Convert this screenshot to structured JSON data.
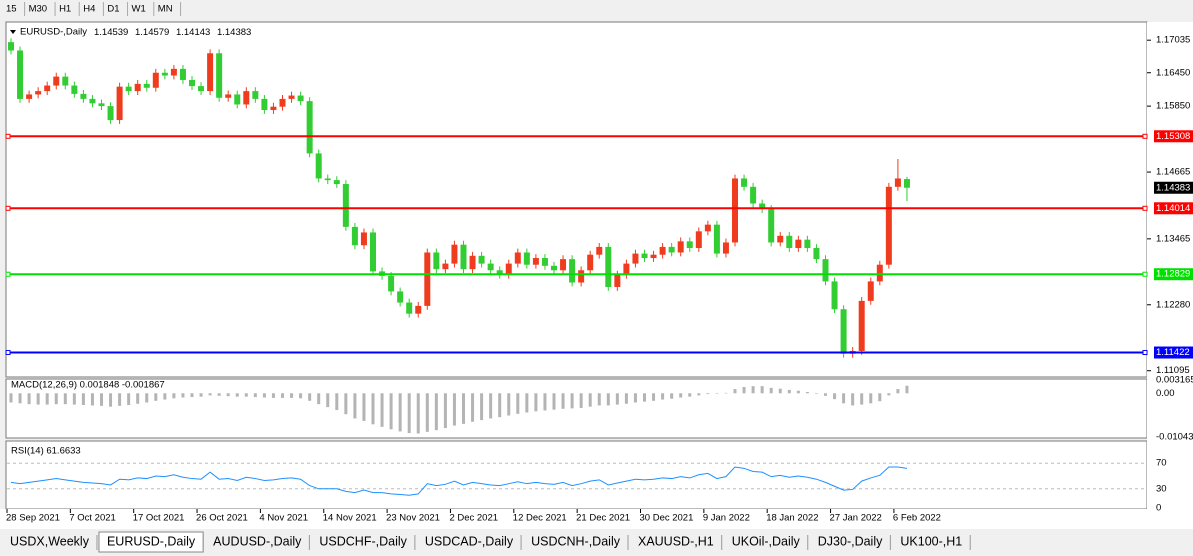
{
  "toolbar": {
    "timeframes": [
      "15",
      "M30",
      "H1",
      "H4",
      "D1",
      "W1",
      "MN"
    ]
  },
  "chart_data": [
    {
      "type": "candlestick",
      "title": "EURUSD-,Daily",
      "up_color": "#f03c1e",
      "down_color": "#32cd32",
      "categories": [
        "28 Sep 2021",
        null,
        null,
        null,
        null,
        null,
        null,
        "7 Oct 2021",
        null,
        null,
        null,
        null,
        null,
        null,
        "17 Oct 2021",
        null,
        null,
        null,
        null,
        null,
        null,
        "26 Oct 2021",
        null,
        null,
        null,
        null,
        null,
        null,
        "4 Nov 2021",
        null,
        null,
        null,
        null,
        null,
        null,
        "14 Nov 2021",
        null,
        null,
        null,
        null,
        null,
        null,
        "23 Nov 2021",
        null,
        null,
        null,
        null,
        null,
        null,
        "2 Dec 2021",
        null,
        null,
        null,
        null,
        null,
        null,
        "12 Dec 2021",
        null,
        null,
        null,
        null,
        null,
        null,
        "21 Dec 2021",
        null,
        null,
        null,
        null,
        null,
        null,
        "30 Dec 2021",
        null,
        null,
        null,
        null,
        null,
        null,
        "9 Jan 2022",
        null,
        null,
        null,
        null,
        null,
        null,
        "18 Jan 2022",
        null,
        null,
        null,
        null,
        null,
        null,
        "27 Jan 2022",
        null,
        null,
        null,
        null,
        null,
        null,
        "6 Feb 2022",
        null
      ],
      "candles": [
        [
          1.17,
          1.1707,
          1.1678,
          1.1685
        ],
        [
          1.1685,
          1.1692,
          1.1591,
          1.1598
        ],
        [
          1.1598,
          1.1613,
          1.1591,
          1.1606
        ],
        [
          1.1606,
          1.1619,
          1.1599,
          1.1612
        ],
        [
          1.1612,
          1.1629,
          1.1605,
          1.1622
        ],
        [
          1.1622,
          1.1645,
          1.1615,
          1.1638
        ],
        [
          1.1638,
          1.1645,
          1.1615,
          1.1622
        ],
        [
          1.1622,
          1.1629,
          1.16,
          1.1607
        ],
        [
          1.1607,
          1.1614,
          1.1591,
          1.1598
        ],
        [
          1.1598,
          1.1605,
          1.1583,
          1.159
        ],
        [
          1.159,
          1.1597,
          1.1578,
          1.1585
        ],
        [
          1.1585,
          1.1592,
          1.1553,
          1.156
        ],
        [
          1.156,
          1.1627,
          1.1553,
          1.162
        ],
        [
          1.162,
          1.1627,
          1.1605,
          1.1612
        ],
        [
          1.1612,
          1.1632,
          1.1605,
          1.1625
        ],
        [
          1.1625,
          1.1632,
          1.1611,
          1.1618
        ],
        [
          1.1618,
          1.1652,
          1.1611,
          1.1645
        ],
        [
          1.1645,
          1.1652,
          1.1633,
          1.164
        ],
        [
          1.164,
          1.1659,
          1.1633,
          1.1652
        ],
        [
          1.1652,
          1.1659,
          1.1625,
          1.1632
        ],
        [
          1.1632,
          1.1639,
          1.1614,
          1.1621
        ],
        [
          1.1621,
          1.1628,
          1.1605,
          1.1612
        ],
        [
          1.1612,
          1.1687,
          1.1605,
          1.168
        ],
        [
          1.168,
          1.1687,
          1.1593,
          1.16
        ],
        [
          1.16,
          1.1613,
          1.1593,
          1.1606
        ],
        [
          1.1606,
          1.1613,
          1.1581,
          1.1588
        ],
        [
          1.1588,
          1.1619,
          1.1581,
          1.1612
        ],
        [
          1.1612,
          1.1619,
          1.1591,
          1.1598
        ],
        [
          1.1598,
          1.1605,
          1.1571,
          1.1578
        ],
        [
          1.1578,
          1.1591,
          1.1571,
          1.1584
        ],
        [
          1.1584,
          1.1605,
          1.1577,
          1.1598
        ],
        [
          1.1598,
          1.1611,
          1.1591,
          1.1604
        ],
        [
          1.1604,
          1.1611,
          1.1587,
          1.1594
        ],
        [
          1.1594,
          1.1601,
          1.1493,
          1.15
        ],
        [
          1.15,
          1.1507,
          1.1448,
          1.1455
        ],
        [
          1.1455,
          1.1462,
          1.1445,
          1.1452
        ],
        [
          1.1452,
          1.1459,
          1.1438,
          1.1445
        ],
        [
          1.1445,
          1.1452,
          1.1361,
          1.1368
        ],
        [
          1.1368,
          1.1375,
          1.1328,
          1.1335
        ],
        [
          1.1335,
          1.1365,
          1.1328,
          1.1358
        ],
        [
          1.1358,
          1.1365,
          1.1281,
          1.1288
        ],
        [
          1.1288,
          1.1295,
          1.1273,
          1.128
        ],
        [
          1.128,
          1.1287,
          1.1245,
          1.1252
        ],
        [
          1.1252,
          1.1259,
          1.1225,
          1.1232
        ],
        [
          1.1232,
          1.1239,
          1.1205,
          1.1212
        ],
        [
          1.1212,
          1.1233,
          1.1205,
          1.1226
        ],
        [
          1.1226,
          1.1329,
          1.1219,
          1.1322
        ],
        [
          1.1322,
          1.1329,
          1.1285,
          1.1292
        ],
        [
          1.1292,
          1.1309,
          1.1285,
          1.1302
        ],
        [
          1.1302,
          1.1343,
          1.1295,
          1.1336
        ],
        [
          1.1336,
          1.1343,
          1.1285,
          1.1292
        ],
        [
          1.1292,
          1.1323,
          1.1285,
          1.1316
        ],
        [
          1.1316,
          1.1323,
          1.1295,
          1.1302
        ],
        [
          1.1302,
          1.1309,
          1.1283,
          1.129
        ],
        [
          1.129,
          1.1297,
          1.1275,
          1.1282
        ],
        [
          1.1282,
          1.1309,
          1.1275,
          1.1302
        ],
        [
          1.1302,
          1.1329,
          1.1295,
          1.1322
        ],
        [
          1.1322,
          1.1329,
          1.1293,
          1.13
        ],
        [
          1.13,
          1.1319,
          1.1293,
          1.1312
        ],
        [
          1.1312,
          1.1319,
          1.1291,
          1.1298
        ],
        [
          1.1298,
          1.1305,
          1.1283,
          1.129
        ],
        [
          1.129,
          1.1317,
          1.1283,
          1.131
        ],
        [
          1.131,
          1.1317,
          1.1261,
          1.1268
        ],
        [
          1.1268,
          1.1297,
          1.1261,
          1.129
        ],
        [
          1.129,
          1.1325,
          1.1283,
          1.1318
        ],
        [
          1.1318,
          1.1339,
          1.1311,
          1.1332
        ],
        [
          1.1332,
          1.1339,
          1.1253,
          1.126
        ],
        [
          1.126,
          1.1289,
          1.1253,
          1.1282
        ],
        [
          1.1282,
          1.1309,
          1.1275,
          1.1302
        ],
        [
          1.1302,
          1.1327,
          1.1295,
          1.132
        ],
        [
          1.132,
          1.1327,
          1.1305,
          1.1312
        ],
        [
          1.1312,
          1.1325,
          1.1305,
          1.1318
        ],
        [
          1.1318,
          1.1339,
          1.1311,
          1.1332
        ],
        [
          1.1332,
          1.1339,
          1.1315,
          1.1322
        ],
        [
          1.1322,
          1.1349,
          1.1315,
          1.1342
        ],
        [
          1.1342,
          1.1349,
          1.1323,
          1.133
        ],
        [
          1.133,
          1.1367,
          1.1323,
          1.136
        ],
        [
          1.136,
          1.1379,
          1.1353,
          1.1372
        ],
        [
          1.1372,
          1.1379,
          1.1313,
          1.132
        ],
        [
          1.132,
          1.1347,
          1.1313,
          1.134
        ],
        [
          1.134,
          1.1462,
          1.1333,
          1.1455
        ],
        [
          1.1455,
          1.1462,
          1.1433,
          1.144
        ],
        [
          1.144,
          1.1447,
          1.1403,
          1.141
        ],
        [
          1.141,
          1.1417,
          1.1393,
          1.14
        ],
        [
          1.14,
          1.1407,
          1.1333,
          1.134
        ],
        [
          1.134,
          1.1359,
          1.1333,
          1.1352
        ],
        [
          1.1352,
          1.1359,
          1.1323,
          1.133
        ],
        [
          1.133,
          1.1352,
          1.1323,
          1.1345
        ],
        [
          1.1345,
          1.1352,
          1.1323,
          1.133
        ],
        [
          1.133,
          1.1337,
          1.1303,
          1.131
        ],
        [
          1.131,
          1.1317,
          1.1263,
          1.127
        ],
        [
          1.127,
          1.1277,
          1.1213,
          1.122
        ],
        [
          1.122,
          1.1227,
          1.1133,
          1.114
        ],
        [
          1.114,
          1.1152,
          1.1133,
          1.1145
        ],
        [
          1.1145,
          1.1242,
          1.1138,
          1.1235
        ],
        [
          1.1235,
          1.1277,
          1.1228,
          1.127
        ],
        [
          1.127,
          1.1307,
          1.1263,
          1.13
        ],
        [
          1.13,
          1.1447,
          1.1293,
          1.144
        ],
        [
          1.144,
          1.149,
          1.1433,
          1.1455
        ],
        [
          1.14539,
          1.14579,
          1.14143,
          1.14383
        ]
      ],
      "ylim": [
        1.11,
        1.1729
      ],
      "yticks": [
        1.17035,
        {
          "value": 1.1645,
          "label": "1.16450"
        },
        {
          "value": 1.1585,
          "label": "1.15850"
        },
        1.14665,
        1.13465,
        {
          "value": 1.1228,
          "label": "1.12280"
        },
        1.11095
      ],
      "levels": [
        {
          "value": 1.15308,
          "color": "#ff0000"
        },
        {
          "value": 1.14014,
          "color": "#ff0000"
        },
        {
          "value": 1.12829,
          "color": "#00e000"
        },
        {
          "value": 1.11422,
          "color": "#0000ff"
        }
      ]
    },
    {
      "type": "bar",
      "title": "MACD(12,26,9) 0.001848 -0.001867",
      "color": "#b4b4b4",
      "values": [
        -0.0022,
        -0.0024,
        -0.0026,
        -0.0027,
        -0.0027,
        -0.0026,
        -0.0026,
        -0.0027,
        -0.0028,
        -0.0029,
        -0.003,
        -0.0032,
        -0.003,
        -0.0028,
        -0.0025,
        -0.0022,
        -0.0018,
        -0.0015,
        -0.0012,
        -0.001,
        -0.0009,
        -0.0008,
        -0.0005,
        -0.0006,
        -0.0007,
        -0.0008,
        -0.0008,
        -0.0009,
        -0.001,
        -0.0011,
        -0.0011,
        -0.0011,
        -0.0012,
        -0.0018,
        -0.0026,
        -0.0033,
        -0.004,
        -0.005,
        -0.006,
        -0.0066,
        -0.0074,
        -0.008,
        -0.0086,
        -0.0091,
        -0.0095,
        -0.0096,
        -0.0092,
        -0.0088,
        -0.0083,
        -0.0077,
        -0.0073,
        -0.0068,
        -0.0064,
        -0.006,
        -0.0057,
        -0.0053,
        -0.0049,
        -0.0046,
        -0.0043,
        -0.0041,
        -0.0039,
        -0.0037,
        -0.0036,
        -0.0035,
        -0.0032,
        -0.0029,
        -0.0029,
        -0.0027,
        -0.0025,
        -0.0022,
        -0.002,
        -0.0018,
        -0.0015,
        -0.0013,
        -0.001,
        -0.0008,
        -0.0005,
        -0.0002,
        -0.0001,
        0.0001,
        0.001,
        0.0015,
        0.0017,
        0.0017,
        0.0013,
        0.0011,
        0.0008,
        0.0006,
        0.0003,
        0,
        -0.0006,
        -0.0014,
        -0.0024,
        -0.0029,
        -0.0027,
        -0.0024,
        -0.0019,
        -0.0005,
        0.001,
        0.0018
      ],
      "ylim": [
        -0.01043,
        0.003165
      ],
      "yticks": [
        0.003165,
        {
          "value": 0,
          "label": "0.00"
        },
        -0.01043
      ]
    },
    {
      "type": "line",
      "title": "RSI(14) 61.6633",
      "color": "#1e90ff",
      "values": [
        40,
        38,
        40,
        42,
        44,
        46,
        44,
        42,
        40,
        39,
        38,
        36,
        45,
        44,
        47,
        46,
        50,
        49,
        52,
        48,
        46,
        45,
        56,
        45,
        46,
        43,
        48,
        46,
        43,
        44,
        46,
        47,
        45,
        35,
        30,
        30,
        30,
        26,
        24,
        28,
        24,
        24,
        22,
        21,
        20,
        22,
        38,
        35,
        37,
        42,
        36,
        40,
        38,
        36,
        35,
        38,
        41,
        38,
        40,
        38,
        37,
        40,
        35,
        38,
        42,
        44,
        36,
        39,
        42,
        45,
        44,
        45,
        47,
        46,
        49,
        47,
        52,
        54,
        46,
        49,
        64,
        62,
        57,
        56,
        49,
        51,
        48,
        50,
        48,
        45,
        40,
        34,
        28,
        29,
        42,
        47,
        51,
        64,
        64,
        62
      ],
      "ylim": [
        0,
        100
      ],
      "yticks": [
        70,
        30,
        0
      ]
    }
  ],
  "tabs": [
    "USDX,Weekly",
    "EURUSD-,Daily",
    "AUDUSD-,Daily",
    "USDCHF-,Daily",
    "USDCAD-,Daily",
    "USDCNH-,Daily",
    "XAUUSD-,H1",
    "UKOil-,Daily",
    "DJ30-,Daily",
    "UK100-,H1"
  ]
}
